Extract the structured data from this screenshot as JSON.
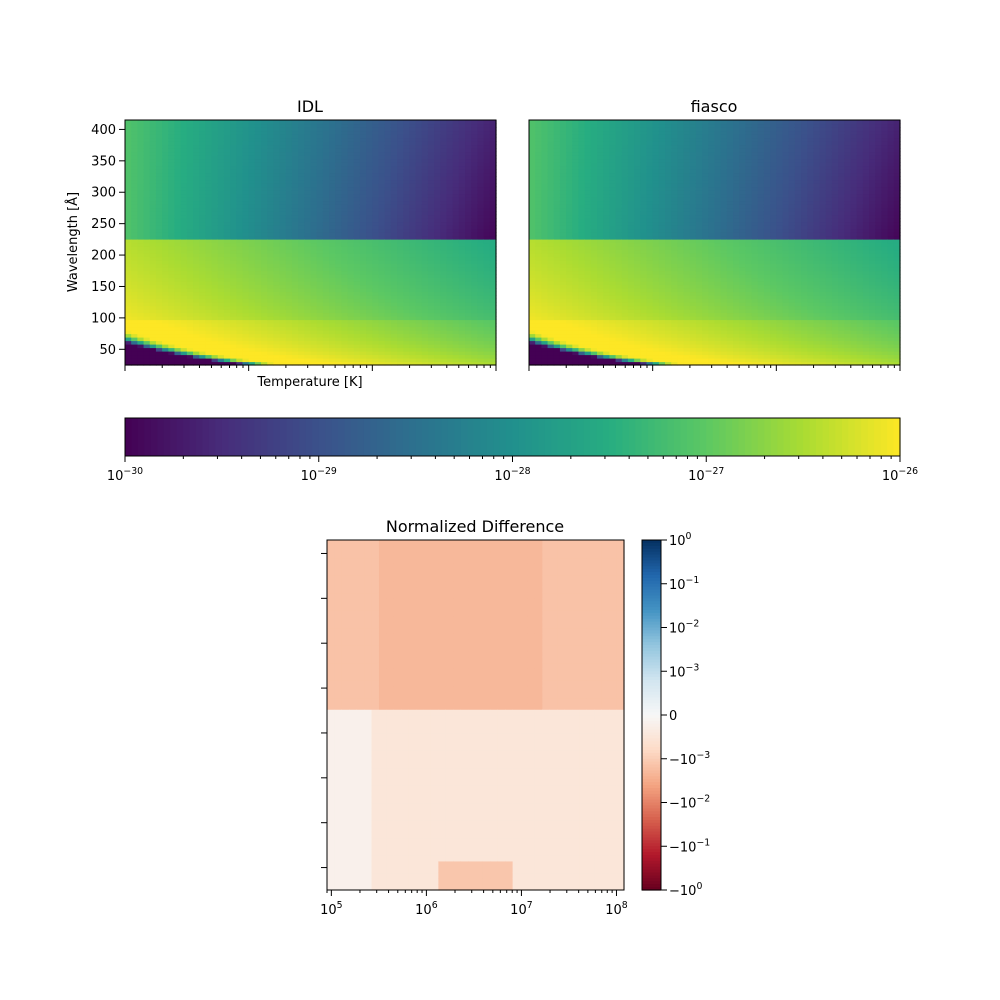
{
  "chart_data": [
    {
      "type": "heatmap",
      "title": "IDL",
      "xlabel": "Temperature [K]",
      "ylabel": "Wavelength [Å]",
      "x_scale": "log",
      "xlim": [
        100000,
        100000000
      ],
      "ylim": [
        25,
        415
      ],
      "yticks": [
        50,
        100,
        150,
        200,
        250,
        300,
        350,
        400
      ],
      "edge_wavelength": 228,
      "colormap": "viridis",
      "color_scale": "log",
      "clim": [
        1e-30,
        1e-26
      ]
    },
    {
      "type": "heatmap",
      "title": "fiasco",
      "x_scale": "log",
      "xlim": [
        100000,
        100000000
      ],
      "ylim": [
        25,
        415
      ],
      "edge_wavelength": 228,
      "colormap": "viridis",
      "color_scale": "log",
      "clim": [
        1e-30,
        1e-26
      ]
    },
    {
      "type": "colorbar",
      "orientation": "horizontal",
      "colormap": "viridis",
      "scale": "log",
      "range": [
        1e-30,
        1e-26
      ],
      "tick_labels": [
        {
          "base": "10",
          "exp": "−30"
        },
        {
          "base": "10",
          "exp": "−29"
        },
        {
          "base": "10",
          "exp": "−28"
        },
        {
          "base": "10",
          "exp": "−27"
        },
        {
          "base": "10",
          "exp": "−26"
        }
      ]
    },
    {
      "type": "heatmap",
      "title": "Normalized Difference",
      "x_scale": "log",
      "xlim": [
        90000,
        120000000
      ],
      "xticks": [
        100000,
        1000000,
        10000000,
        100000000
      ],
      "x_tick_labels": [
        {
          "base": "10",
          "exp": "5"
        },
        {
          "base": "10",
          "exp": "6"
        },
        {
          "base": "10",
          "exp": "7"
        },
        {
          "base": "10",
          "exp": "8"
        }
      ],
      "ylim": [
        25,
        415
      ],
      "colormap": "RdBu",
      "color_scale": "symlog",
      "clim": [
        -1,
        1
      ],
      "typical_value_above_edge": -0.0015,
      "typical_value_below_edge": -0.0005
    },
    {
      "type": "colorbar",
      "orientation": "vertical",
      "colormap": "RdBu",
      "scale": "symlog",
      "range": [
        -1,
        1
      ],
      "tick_labels": [
        {
          "prefix": "",
          "base": "10",
          "exp": "0"
        },
        {
          "prefix": "",
          "base": "10",
          "exp": "−1"
        },
        {
          "prefix": "",
          "base": "10",
          "exp": "−2"
        },
        {
          "prefix": "",
          "base": "10",
          "exp": "−3"
        },
        {
          "prefix": "0",
          "base": "",
          "exp": ""
        },
        {
          "prefix": "−",
          "base": "10",
          "exp": "−3"
        },
        {
          "prefix": "−",
          "base": "10",
          "exp": "−2"
        },
        {
          "prefix": "−",
          "base": "10",
          "exp": "−1"
        },
        {
          "prefix": "−",
          "base": "10",
          "exp": "0"
        }
      ]
    }
  ]
}
